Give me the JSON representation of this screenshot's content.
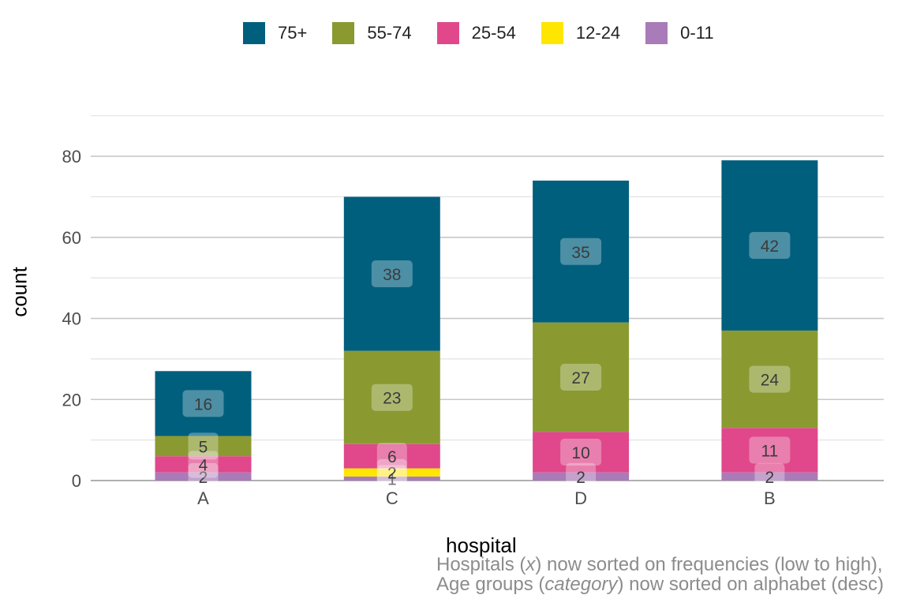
{
  "chart_data": {
    "type": "bar",
    "stacked": true,
    "categories": [
      "A",
      "C",
      "D",
      "B"
    ],
    "series": [
      {
        "name": "0-11",
        "values": [
          2,
          1,
          2,
          2
        ],
        "color": "#a97bb8"
      },
      {
        "name": "12-24",
        "values": [
          0,
          2,
          0,
          0
        ],
        "color": "#ffe600"
      },
      {
        "name": "25-54",
        "values": [
          4,
          6,
          10,
          11
        ],
        "color": "#e0488b"
      },
      {
        "name": "55-74",
        "values": [
          5,
          23,
          27,
          24
        ],
        "color": "#8a9a31"
      },
      {
        "name": "75+",
        "values": [
          16,
          38,
          35,
          42
        ],
        "color": "#015f7e"
      }
    ],
    "legend_order": [
      "75+",
      "55-74",
      "25-54",
      "12-24",
      "0-11"
    ],
    "legend_position": "top",
    "xlabel": "hospital",
    "ylabel": "count",
    "ylim": [
      0,
      90
    ],
    "yticks": [
      0,
      20,
      40,
      60,
      80
    ],
    "grid": true,
    "caption": {
      "line1": [
        "Hospitals (",
        "x",
        ") now sorted on frequencies (low to high),"
      ],
      "line2": [
        "Age groups (",
        "category",
        ") now sorted on alphabet (desc)"
      ]
    }
  }
}
